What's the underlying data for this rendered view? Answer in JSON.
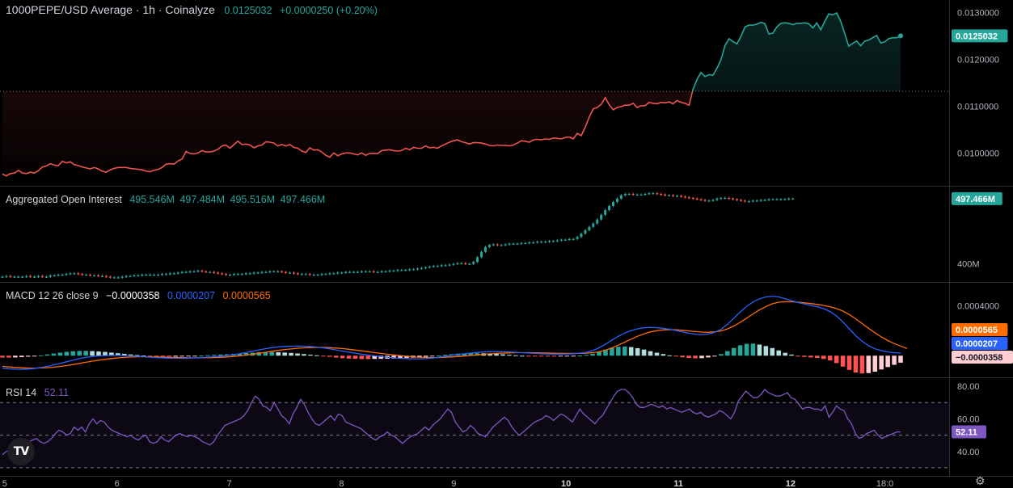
{
  "header": {
    "title": "1000PEPE/USD Average · 1h · Coinalyze",
    "price": "0.0125032",
    "change": "+0.0000250 (+0.20%)"
  },
  "oi_legend": {
    "label": "Aggregated Open Interest",
    "values": [
      "495.546M",
      "497.484M",
      "495.516M",
      "497.466M"
    ]
  },
  "macd_legend": {
    "label": "MACD 12 26 close 9",
    "histogram": "−0.0000358",
    "macd": "0.0000207",
    "signal": "0.0000565"
  },
  "rsi_legend": {
    "label": "RSI 14",
    "value": "52.11"
  },
  "colors": {
    "up": "#26a69a",
    "down": "#ef5350",
    "macd": "#2962ff",
    "signal": "#ff6d00",
    "rsi": "#7e57c2",
    "hist_up_strong": "#26a69a",
    "hist_up_weak": "#b2dfdb",
    "hist_down_strong": "#ff5252",
    "hist_down_weak": "#ffcdd2",
    "grid": "#2a2e39",
    "text": "#b2b5be"
  },
  "chart_data": [
    {
      "type": "line",
      "name": "price",
      "y_ticks": [
        "0.0130000",
        "0.0120000",
        "0.0110000",
        "0.0100000"
      ],
      "y_tick_values": [
        0.013,
        0.012,
        0.011,
        0.01
      ],
      "ylim": [
        0.00937,
        0.0132
      ],
      "reference_price": 0.01132,
      "last_label": "0.0125032",
      "values": [
        0.009553,
        0.009513,
        0.009563,
        0.009573,
        0.009633,
        0.009573,
        0.009563,
        0.009593,
        0.009573,
        0.009623,
        0.009703,
        0.009723,
        0.009773,
        0.009743,
        0.009733,
        0.009823,
        0.009793,
        0.009813,
        0.009753,
        0.009733,
        0.009703,
        0.009683,
        0.009663,
        0.009693,
        0.009663,
        0.009613,
        0.009593,
        0.009643,
        0.009673,
        0.009693,
        0.009693,
        0.009693,
        0.009673,
        0.009663,
        0.009653,
        0.009643,
        0.009613,
        0.009603,
        0.009633,
        0.009653,
        0.009693,
        0.009763,
        0.009773,
        0.009763,
        0.009833,
        0.009873,
        0.010033,
        0.009993,
        0.009983,
        0.010003,
        0.010053,
        0.010023,
        0.010023,
        0.010043,
        0.010083,
        0.010153,
        0.010173,
        0.010103,
        0.010183,
        0.010253,
        0.010183,
        0.010193,
        0.010173,
        0.010113,
        0.010153,
        0.010173,
        0.010243,
        0.010233,
        0.010213,
        0.010153,
        0.010183,
        0.010153,
        0.010183,
        0.010123,
        0.010103,
        0.010043,
        0.010013,
        0.010113,
        0.010063,
        0.010073,
        0.010023,
        0.009953,
        0.009913,
        0.010003,
        0.009943,
        0.009983,
        0.010003,
        0.010003,
        0.009983,
        0.009963,
        0.010003,
        0.009953,
        0.009993,
        0.009993,
        0.009993,
        0.010053,
        0.010063,
        0.010073,
        0.010053,
        0.010043,
        0.010053,
        0.010103,
        0.010073,
        0.010123,
        0.010103,
        0.010103,
        0.010153,
        0.010113,
        0.010123,
        0.010103,
        0.010153,
        0.010193,
        0.010233,
        0.010263,
        0.010283,
        0.010243,
        0.010223,
        0.010193,
        0.010223,
        0.010223,
        0.010213,
        0.010193,
        0.010163,
        0.010153,
        0.010173,
        0.010163,
        0.010163,
        0.010153,
        0.010173,
        0.010213,
        0.010263,
        0.010253,
        0.010233,
        0.010283,
        0.010293,
        0.010283,
        0.010303,
        0.010293,
        0.010323,
        0.010313,
        0.010303,
        0.010333,
        0.010343,
        0.010303,
        0.010423,
        0.010373,
        0.010553,
        0.010773,
        0.010943,
        0.010973,
        0.011043,
        0.011183,
        0.011033,
        0.010923,
        0.010973,
        0.010993,
        0.011023,
        0.011023,
        0.011063,
        0.010973,
        0.011013,
        0.011013,
        0.011083,
        0.011063,
        0.011053,
        0.011083,
        0.011073,
        0.011093,
        0.011053,
        0.011123,
        0.011083,
        0.011063,
        0.011023,
        0.011363,
        0.011573,
        0.011723,
        0.011633,
        0.011673,
        0.011663,
        0.011813,
        0.011993,
        0.012293,
        0.012443,
        0.012383,
        0.012333,
        0.012493,
        0.012693,
        0.012733,
        0.012733,
        0.012753,
        0.012793,
        0.012763,
        0.012543,
        0.012563,
        0.012693,
        0.012773,
        0.012783,
        0.012773,
        0.012743,
        0.012773,
        0.012773,
        0.012783,
        0.012763,
        0.012673,
        0.012783,
        0.012633,
        0.012813,
        0.012973,
        0.012953,
        0.012993,
        0.012813,
        0.012553,
        0.012283,
        0.012343,
        0.012393,
        0.012293,
        0.012393,
        0.012413,
        0.012463,
        0.012513,
        0.012353,
        0.012373,
        0.012443,
        0.012463,
        0.012463,
        0.012503
      ]
    },
    {
      "type": "candlestick",
      "name": "Aggregated Open Interest",
      "y_ticks": [
        "400M"
      ],
      "y_tick_values": [
        400
      ],
      "ylim": [
        378,
        510
      ],
      "last_label": "497.466M",
      "values": [
        381,
        382,
        381,
        381,
        381,
        381,
        382,
        381,
        381,
        382,
        381,
        381,
        383,
        383,
        384,
        384,
        385,
        386,
        386,
        385,
        384,
        384,
        383,
        383,
        382,
        382,
        381,
        380,
        380,
        380,
        381,
        382,
        382,
        383,
        383,
        384,
        384,
        384,
        384,
        384,
        385,
        385,
        386,
        386,
        387,
        388,
        388,
        389,
        389,
        390,
        389,
        388,
        388,
        387,
        386,
        385,
        384,
        384,
        385,
        385,
        385,
        386,
        386,
        387,
        387,
        388,
        388,
        389,
        389,
        389,
        388,
        387,
        387,
        386,
        385,
        385,
        385,
        384,
        384,
        384,
        385,
        385,
        386,
        386,
        387,
        387,
        388,
        388,
        388,
        388,
        389,
        389,
        389,
        388,
        388,
        389,
        389,
        390,
        390,
        391,
        391,
        391,
        392,
        392,
        393,
        394,
        395,
        396,
        397,
        397,
        398,
        398,
        399,
        400,
        401,
        401,
        400,
        400,
        403,
        410,
        418,
        425,
        428,
        429,
        428,
        428,
        429,
        430,
        430,
        430,
        431,
        431,
        432,
        432,
        433,
        433,
        433,
        434,
        434,
        435,
        436,
        436,
        437,
        437,
        440,
        445,
        450,
        455,
        460,
        466,
        473,
        480,
        486,
        492,
        497,
        502,
        504,
        504,
        503,
        503,
        503,
        504,
        505,
        505,
        504,
        503,
        502,
        502,
        501,
        501,
        500,
        499,
        498,
        497,
        496,
        495,
        494,
        494,
        495,
        497,
        498,
        498,
        497,
        496,
        495,
        494,
        493,
        493,
        494,
        494,
        495,
        495,
        496,
        496,
        496,
        496,
        496,
        497,
        497
      ]
    },
    {
      "type": "line+histogram",
      "name": "MACD 12 26 close 9",
      "y_ticks": [
        "0.0004000"
      ],
      "y_tick_values": [
        0.0004
      ],
      "ylim": [
        -0.00016,
        0.00057
      ],
      "labels": {
        "signal": "0.0000565",
        "macd": "0.0000207",
        "histogram": "−0.0000358"
      },
      "macd": [
        -0.0001,
        -0.000105,
        -0.000108,
        -0.000109,
        -0.000107,
        -0.000102,
        -9.5e-05,
        -8.6e-05,
        -7.5e-05,
        -6.2e-05,
        -4.8e-05,
        -3.5e-05,
        -2.4e-05,
        -1.4e-05,
        -7e-06,
        -2e-06,
        1e-06,
        2e-06,
        2e-06,
        1e-06,
        -1e-06,
        -4e-06,
        -8e-06,
        -1.2e-05,
        -1.5e-05,
        -1.8e-05,
        -2e-05,
        -2.1e-05,
        -2.1e-05,
        -2e-05,
        -1.8e-05,
        -1.5e-05,
        -1.2e-05,
        -8e-06,
        -4e-06,
        1e-06,
        8e-06,
        1.6e-05,
        2.6e-05,
        3.6e-05,
        4.7e-05,
        5.6e-05,
        6.4e-05,
        7e-05,
        7.4e-05,
        7.6e-05,
        7.7e-05,
        7.6e-05,
        7.3e-05,
        6.9e-05,
        6.3e-05,
        5.5e-05,
        4.6e-05,
        3.7e-05,
        2.8e-05,
        2e-05,
        1.2e-05,
        5e-06,
        -1e-06,
        -7e-06,
        -1.2e-05,
        -1.7e-05,
        -2.1e-05,
        -2.4e-05,
        -2.5e-05,
        -2.5e-05,
        -2.3e-05,
        -1.9e-05,
        -1.3e-05,
        -6e-06,
        2e-06,
        9e-06,
        1.5e-05,
        2.1e-05,
        2.6e-05,
        3e-05,
        3.2e-05,
        3.3e-05,
        3.2e-05,
        3e-05,
        2.7e-05,
        2.4e-05,
        2.1e-05,
        1.8e-05,
        1.6e-05,
        1.4e-05,
        1.3e-05,
        1.3e-05,
        1.4e-05,
        1.6e-05,
        2e-05,
        2.7e-05,
        4e-05,
        6.2e-05,
        9.2e-05,
        0.000125,
        0.000155,
        0.000181,
        0.000201,
        0.000215,
        0.000223,
        0.000226,
        0.000224,
        0.000219,
        0.000211,
        0.000201,
        0.00019,
        0.00018,
        0.000172,
        0.000169,
        0.000173,
        0.000186,
        0.000211,
        0.000251,
        0.0003,
        0.00035,
        0.000395,
        0.00043,
        0.000455,
        0.00047,
        0.000476,
        0.00047,
        0.000455,
        0.00044,
        0.000425,
        0.000413,
        0.000403,
        0.000392,
        0.000376,
        0.000353,
        0.000318,
        0.00027,
        0.000215,
        0.00016,
        0.000115,
        8e-05,
        5.5e-05,
        4e-05,
        3e-05,
        2.4e-05,
        2.1e-05
      ],
      "signal": [
        -8.5e-05,
        -9e-05,
        -9.4e-05,
        -9.7e-05,
        -9.9e-05,
        -9.9e-05,
        -9.8e-05,
        -9.6e-05,
        -9.2e-05,
        -8.6e-05,
        -7.9e-05,
        -7.1e-05,
        -6.2e-05,
        -5.3e-05,
        -4.4e-05,
        -3.6e-05,
        -2.9e-05,
        -2.3e-05,
        -1.8e-05,
        -1.4e-05,
        -1.1e-05,
        -9e-06,
        -9e-06,
        -9e-06,
        -1e-05,
        -1.1e-05,
        -1.3e-05,
        -1.4e-05,
        -1.6e-05,
        -1.7e-05,
        -1.7e-05,
        -1.7e-05,
        -1.6e-05,
        -1.5e-05,
        -1.3e-05,
        -1e-05,
        -6e-06,
        -1e-06,
        5e-06,
        1.2e-05,
        1.9e-05,
        2.7e-05,
        3.5e-05,
        4.2e-05,
        4.9e-05,
        5.4e-05,
        5.9e-05,
        6.3e-05,
        6.5e-05,
        6.6e-05,
        6.6e-05,
        6.4e-05,
        6.1e-05,
        5.7e-05,
        5.1e-05,
        4.5e-05,
        3.9e-05,
        3.2e-05,
        2.5e-05,
        1.8e-05,
        1.2e-05,
        6e-06,
        0.0,
        -5e-06,
        -9e-06,
        -1.2e-05,
        -1.4e-05,
        -1.5e-05,
        -1.5e-05,
        -1.3e-05,
        -1e-05,
        -7e-06,
        -3e-06,
        2e-06,
        6e-06,
        1.1e-05,
        1.5e-05,
        1.8e-05,
        2.1e-05,
        2.3e-05,
        2.4e-05,
        2.4e-05,
        2.4e-05,
        2.3e-05,
        2.2e-05,
        2.1e-05,
        2e-05,
        1.9e-05,
        1.8e-05,
        1.8e-05,
        1.8e-05,
        2e-05,
        2.4e-05,
        3.1e-05,
        4.4e-05,
        6.2e-05,
        8.4e-05,
        0.000108,
        0.000132,
        0.000155,
        0.000174,
        0.00019,
        0.0002,
        0.000206,
        0.000208,
        0.000207,
        0.000203,
        0.000198,
        0.000193,
        0.000189,
        0.000187,
        0.00019,
        0.000198,
        0.000214,
        0.000238,
        0.000267,
        0.0003,
        0.000334,
        0.000366,
        0.000393,
        0.000415,
        0.000428,
        0.000432,
        0.000431,
        0.000428,
        0.000423,
        0.000417,
        0.00041,
        0.000402,
        0.000391,
        0.000377,
        0.000357,
        0.000329,
        0.000295,
        0.000257,
        0.000219,
        0.000183,
        0.00015,
        0.000121,
        9.7e-05,
        7.7e-05,
        5.7e-05
      ]
    },
    {
      "type": "line",
      "name": "RSI 14",
      "y_ticks": [
        "80.00",
        "60.00",
        "40.00"
      ],
      "y_tick_values": [
        80,
        60,
        40
      ],
      "ylim": [
        26,
        84
      ],
      "band": [
        30,
        70
      ],
      "midline": 50,
      "last_label": "52.11",
      "values": [
        38,
        40,
        41,
        43,
        45,
        48,
        47,
        46,
        47,
        48,
        46,
        45,
        46,
        48,
        51,
        53,
        52,
        50,
        51,
        55,
        53,
        55,
        52,
        57,
        60,
        57,
        59,
        58,
        55,
        53,
        52,
        51,
        50,
        49,
        50,
        48,
        47,
        49,
        50,
        46,
        45,
        46,
        49,
        47,
        46,
        48,
        50,
        51,
        50,
        49,
        50,
        49,
        48,
        46,
        45,
        44,
        46,
        50,
        53,
        56,
        57,
        58,
        59,
        60,
        62,
        65,
        70,
        74,
        72,
        68,
        67,
        65,
        70,
        66,
        62,
        60,
        57,
        63,
        67,
        72,
        69,
        64,
        60,
        57,
        56,
        58,
        60,
        62,
        59,
        63,
        62,
        58,
        57,
        56,
        55,
        54,
        52,
        50,
        48,
        47,
        49,
        50,
        52,
        50,
        49,
        47,
        45,
        47,
        49,
        50,
        51,
        53,
        55,
        53,
        56,
        58,
        60,
        63,
        66,
        64,
        58,
        55,
        52,
        53,
        56,
        54,
        51,
        50,
        49,
        52,
        55,
        57,
        59,
        61,
        59,
        55,
        52,
        50,
        52,
        54,
        56,
        58,
        59,
        60,
        62,
        61,
        59,
        61,
        63,
        62,
        60,
        58,
        62,
        66,
        63,
        61,
        59,
        57,
        60,
        62,
        66,
        70,
        74,
        77,
        78,
        78,
        76,
        73,
        69,
        67,
        67,
        68,
        69,
        68,
        67,
        68,
        66,
        67,
        66,
        65,
        64,
        65,
        66,
        64,
        63,
        64,
        62,
        61,
        62,
        63,
        65,
        64,
        62,
        60,
        64,
        71,
        74,
        77,
        75,
        73,
        73,
        75,
        78,
        76,
        75,
        74,
        74,
        75,
        76,
        73,
        72,
        69,
        66,
        67,
        67,
        66,
        66,
        65,
        68,
        61,
        64,
        68,
        66,
        65,
        60,
        57,
        51,
        48,
        49,
        51,
        52,
        53,
        50,
        48,
        49,
        50,
        51,
        52,
        52
      ]
    }
  ],
  "x_axis": {
    "labels": [
      "5",
      "6",
      "7",
      "8",
      "9",
      "10",
      "11",
      "12",
      "18:0"
    ],
    "positions": [
      0.5,
      25.5,
      50.5,
      75.5,
      100.5,
      125.5,
      150.5,
      175.5,
      196.5
    ],
    "bold": [
      "10",
      "11",
      "12"
    ]
  },
  "logo": {
    "text": "TV"
  }
}
